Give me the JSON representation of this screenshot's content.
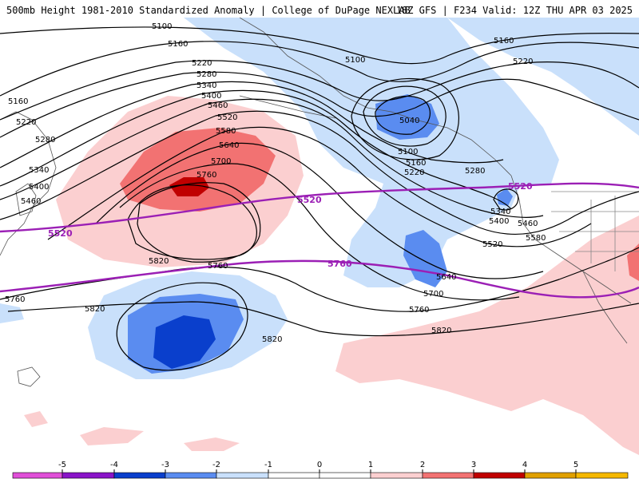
{
  "header": {
    "left": "500mb Height 1981-2010 Standardized Anomaly | College of DuPage NEXLAB",
    "right": "18Z GFS | F234 Valid: 12Z THU APR 03 2025"
  },
  "colors": {
    "neg1": "#c9e0fb",
    "neg2": "#5a8cf0",
    "neg3": "#0a3fcc",
    "pos1": "#fbcfd0",
    "pos2": "#f27272",
    "pos3": "#c00000",
    "climo": "#9b1fb5",
    "contour": "#000000",
    "coast": "#555555"
  },
  "contour_labels": {
    "c5100_top": "5100",
    "c5160_a": "5160",
    "c5160_left": "5160",
    "c5220_a": "5220",
    "c5220_left": "5220",
    "c5280_a": "5280",
    "c5280_left": "5280",
    "c5340_a": "5340",
    "c5340_left": "5340",
    "c5400_a": "5400",
    "c5400_left": "5400",
    "c5460_a": "5460",
    "c5460_left": "5460",
    "c5520_a": "5520",
    "c5580_a": "5580",
    "c5640_a": "5640",
    "c5700_a": "5700",
    "c5760_a": "5760",
    "c5820_a": "5820",
    "c5760_b": "5760",
    "c5760_left": "5760",
    "c5820_b": "5820",
    "c5820_c": "5820",
    "c5100_east": "5100",
    "c5160_east": "5160",
    "c5220_east": "5220",
    "c5040_low": "5040",
    "c5100_low": "5100",
    "c5160_low": "5160",
    "c5220_low": "5220",
    "c5280_low": "5280",
    "c5340_cut": "5340",
    "c5400_cut": "5400",
    "c5460_cut": "5460",
    "c5520_cut": "5520",
    "c5580_cut": "5580",
    "c5640_cut": "5640",
    "c5700_cut": "5700",
    "c5760_cut": "5760",
    "c5820_cut": "5820"
  },
  "climo_labels": {
    "c5520_left": "5520",
    "c5520_mid": "5520",
    "c5520_right": "5520",
    "c5760_mid": "5760"
  },
  "legend": {
    "ticks": [
      "-5",
      "-4",
      "-3",
      "-2",
      "-1",
      "0",
      "1",
      "2",
      "3",
      "4",
      "5"
    ],
    "colors": [
      "#e04fd8",
      "#8a14c8",
      "#0a3fcc",
      "#5a8cf0",
      "#c9e0fb",
      "#ffffff",
      "#ffffff",
      "#fbcfd0",
      "#f27272",
      "#c00000",
      "#e0a000",
      "#f5b800"
    ]
  }
}
